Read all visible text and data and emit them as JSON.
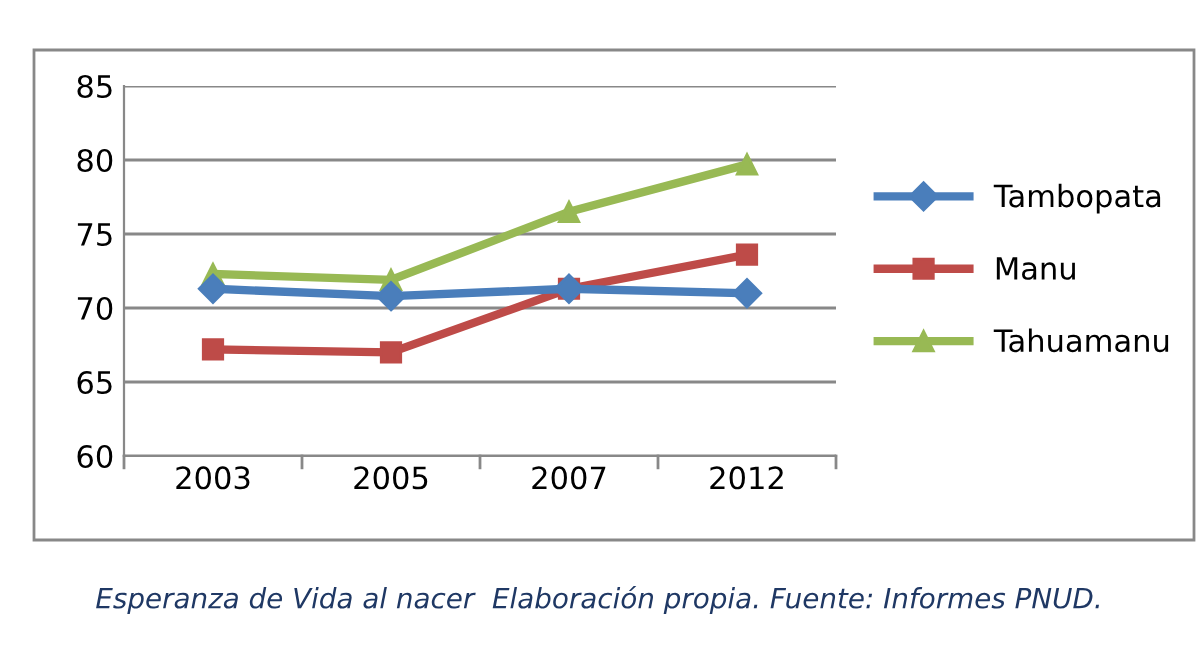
{
  "chart_data": {
    "type": "line",
    "categories": [
      "2003",
      "2005",
      "2007",
      "2012"
    ],
    "series": [
      {
        "name": "Tambopata",
        "color": "#4a7ebb",
        "marker": "diamond",
        "values": [
          71.3,
          70.8,
          71.3,
          71.0
        ]
      },
      {
        "name": "Manu",
        "color": "#be4b48",
        "marker": "square",
        "values": [
          67.2,
          67.0,
          71.3,
          73.6
        ]
      },
      {
        "name": "Tahuamanu",
        "color": "#98b954",
        "marker": "triangle",
        "values": [
          72.3,
          71.9,
          76.5,
          79.7
        ]
      }
    ],
    "ylim": [
      60,
      85
    ],
    "yticks": [
      60,
      65,
      70,
      75,
      80,
      85
    ],
    "grid": "y",
    "legend": "right",
    "line_style": "solid",
    "annotations": [
      "Esperanza de Vida al nacer  Elaboración propia. Fuente: Informes PNUD."
    ]
  }
}
